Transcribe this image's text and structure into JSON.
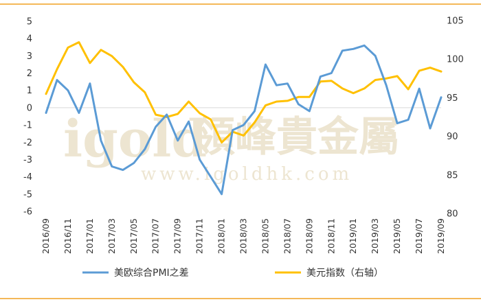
{
  "colors": {
    "frame_line": "#f0a020",
    "pmi_series": "#5b9bd5",
    "usd_series": "#ffc000",
    "watermark": "#e9dfc6"
  },
  "watermark": {
    "logo_text": "igold",
    "brand_text": "領峰貴金屬",
    "url_text": "www.igoldhk.com"
  },
  "chart_data": {
    "type": "line",
    "x": [
      "2016/09",
      "2016/10",
      "2016/11",
      "2016/12",
      "2017/01",
      "2017/02",
      "2017/03",
      "2017/04",
      "2017/05",
      "2017/06",
      "2017/07",
      "2017/08",
      "2017/09",
      "2017/10",
      "2017/11",
      "2017/12",
      "2018/01",
      "2018/02",
      "2018/03",
      "2018/04",
      "2018/05",
      "2018/06",
      "2018/07",
      "2018/08",
      "2018/09",
      "2018/10",
      "2018/11",
      "2018/12",
      "2019/01",
      "2019/02",
      "2019/03",
      "2019/04",
      "2019/05",
      "2019/06",
      "2019/07",
      "2019/08",
      "2019/09"
    ],
    "x_tick_labels": [
      "2016/09",
      "2016/11",
      "2017/01",
      "2017/03",
      "2017/05",
      "2017/07",
      "2017/09",
      "2017/11",
      "2018/01",
      "2018/03",
      "2018/05",
      "2018/07",
      "2018/09",
      "2018/11",
      "2019/01",
      "2019/03",
      "2019/05",
      "2019/07",
      "2019/09"
    ],
    "left_axis": {
      "ylim": [
        -6,
        5
      ],
      "ticks": [
        "5",
        "4",
        "3",
        "2",
        "1",
        "0",
        "-1",
        "-2",
        "-3",
        "-4",
        "-5",
        "-6"
      ]
    },
    "right_axis": {
      "ylim": [
        80,
        105
      ],
      "ticks": [
        "105",
        "100",
        "95",
        "90",
        "85",
        "80"
      ]
    },
    "grid": false,
    "legend_position": "bottom",
    "series": [
      {
        "name": "美欧综合PMI之差",
        "axis": "left",
        "values": [
          -0.3,
          1.6,
          1.0,
          -0.3,
          1.4,
          -1.9,
          -3.4,
          -3.6,
          -3.2,
          -2.4,
          -1.1,
          -0.4,
          -1.9,
          -0.8,
          -3.0,
          -4.0,
          -5.0,
          -1.3,
          -1.0,
          -0.2,
          2.5,
          1.3,
          1.4,
          0.2,
          -0.2,
          1.8,
          2.0,
          3.3,
          3.4,
          3.6,
          3.0,
          1.3,
          -0.9,
          -0.7,
          1.1,
          -1.2,
          0.6
        ]
      },
      {
        "name": "美元指数（右轴）",
        "axis": "right",
        "values": [
          95.5,
          98.7,
          101.5,
          102.2,
          99.5,
          101.2,
          100.4,
          99.0,
          97.0,
          95.7,
          92.8,
          92.5,
          92.9,
          94.5,
          93.0,
          92.2,
          89.2,
          90.6,
          90.1,
          91.8,
          94.0,
          94.5,
          94.6,
          95.1,
          95.1,
          97.1,
          97.2,
          96.2,
          95.6,
          96.2,
          97.3,
          97.5,
          97.8,
          96.1,
          98.5,
          98.9,
          98.4
        ]
      }
    ]
  }
}
